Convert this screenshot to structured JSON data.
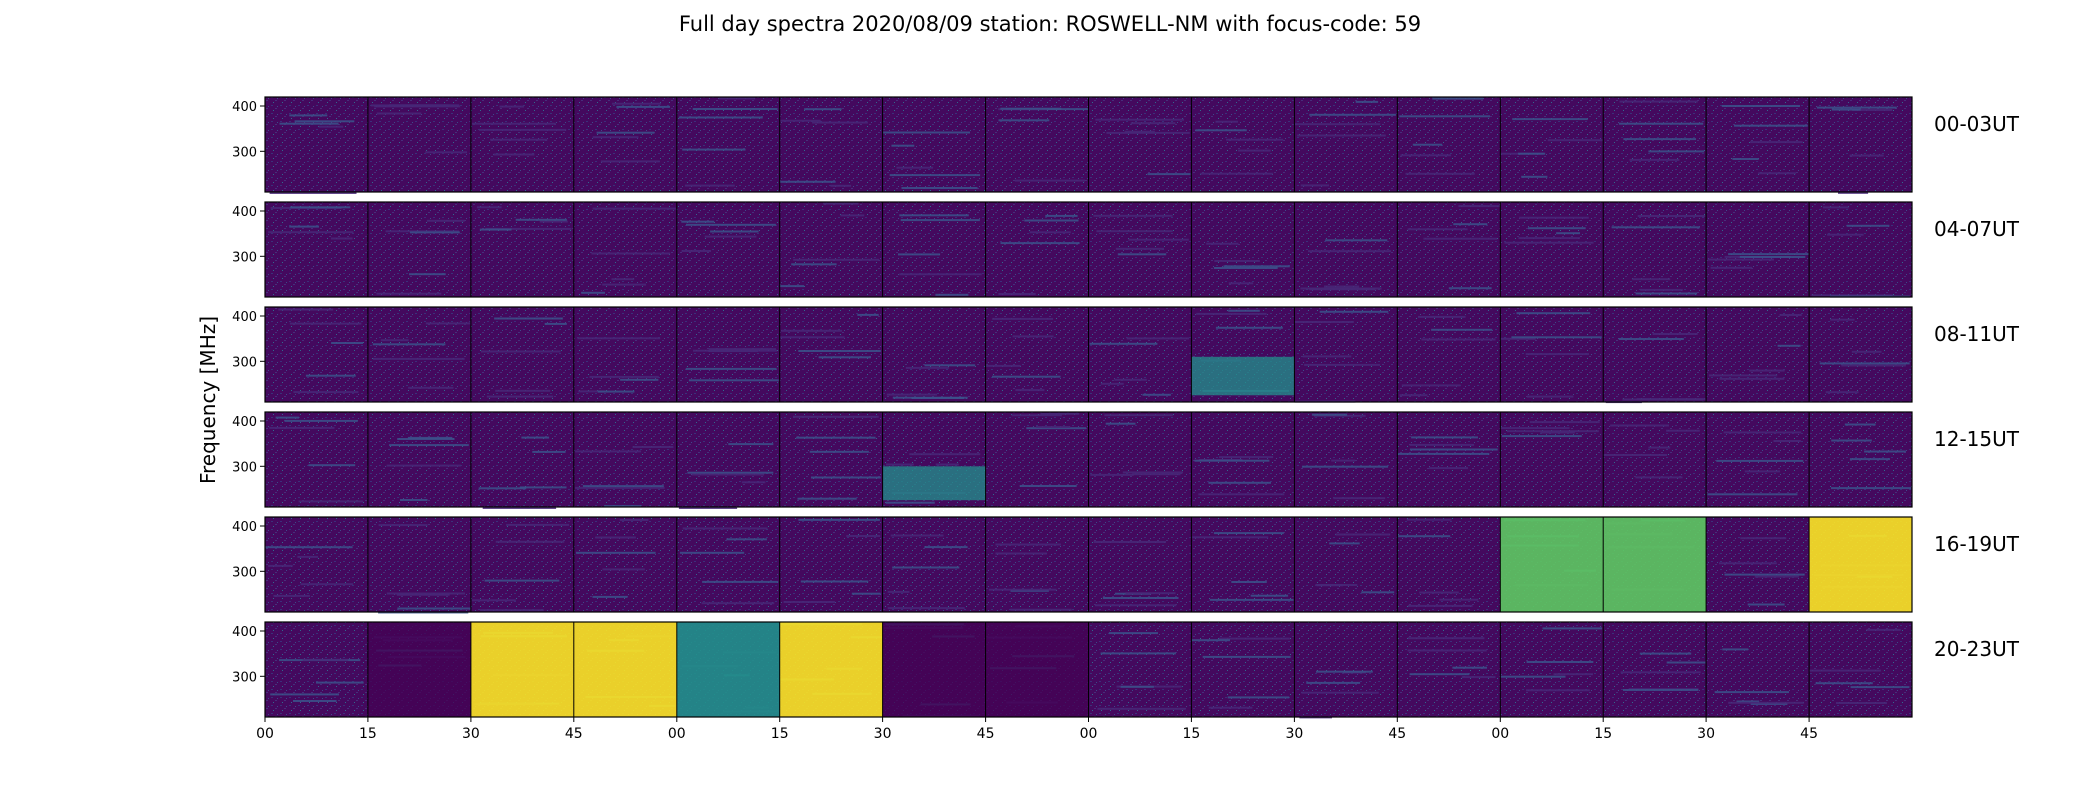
{
  "chart_data": {
    "type": "heatmap",
    "title": "Full day spectra 2020/08/09 station: ROSWELL-NM with focus-code: 59",
    "ylabel": "Frequency [MHz]",
    "xlabel": "",
    "y_ticks": [
      "400",
      "300"
    ],
    "y_tick_values": [
      400,
      300
    ],
    "ylim": [
      210,
      420
    ],
    "x_ticks": [
      "00",
      "15",
      "30",
      "45",
      "00",
      "15",
      "30",
      "45",
      "00",
      "15",
      "30",
      "45",
      "00",
      "15",
      "30",
      "45"
    ],
    "rows": [
      "00-03UT",
      "04-07UT",
      "08-11UT",
      "12-15UT",
      "16-19UT",
      "20-23UT"
    ],
    "segments_per_row": 16,
    "segment_minutes": 15,
    "colormap": {
      "name": "viridis",
      "low": "#440154",
      "mid1": "#3b528b",
      "mid2": "#21918c",
      "mid3": "#5ec962",
      "high": "#fde725"
    },
    "features": [
      {
        "row": "08-11UT",
        "segment": 9,
        "f_low": 225,
        "f_high": 310,
        "level": 0.42
      },
      {
        "row": "12-15UT",
        "segment": 6,
        "f_low": 225,
        "f_high": 300,
        "level": 0.4
      },
      {
        "row": "16-19UT",
        "segment": 15,
        "f_low": 210,
        "f_high": 420,
        "level": 1.0
      },
      {
        "row": "20-23UT",
        "segment": 1,
        "f_low": 210,
        "f_high": 420,
        "level": 0.0
      },
      {
        "row": "20-23UT",
        "segment": 2,
        "f_low": 210,
        "f_high": 420,
        "level": 0.9
      },
      {
        "row": "20-23UT",
        "segment": 3,
        "f_low": 210,
        "f_high": 420,
        "level": 0.95
      },
      {
        "row": "20-23UT",
        "segment": 4,
        "f_low": 210,
        "f_high": 420,
        "level": 0.55
      },
      {
        "row": "20-23UT",
        "segment": 5,
        "f_low": 210,
        "f_high": 420,
        "level": 0.95
      },
      {
        "row": "20-23UT",
        "segment": 6,
        "f_low": 210,
        "f_high": 420,
        "level": 0.0
      },
      {
        "row": "20-23UT",
        "segment": 7,
        "f_low": 210,
        "f_high": 420,
        "level": 0.0
      },
      {
        "row": "16-19UT",
        "segment": 12,
        "f_low": 210,
        "f_high": 420,
        "level": 0.85
      },
      {
        "row": "16-19UT",
        "segment": 13,
        "f_low": 210,
        "f_high": 420,
        "level": 0.85
      }
    ]
  }
}
